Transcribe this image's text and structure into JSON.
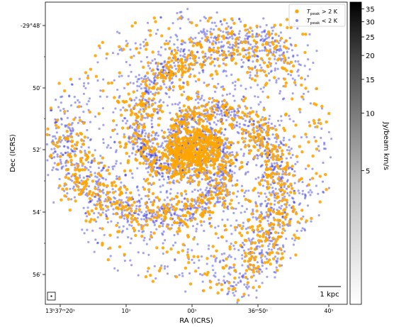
{
  "chart_data": {
    "type": "scatter",
    "xlabel": "RA (ICRS)",
    "ylabel": "Dec (ICRS)",
    "x_ticks": [
      "13ʰ37ᵐ20ˢ",
      "10ˢ",
      "00ˢ",
      "36ᵐ50ˢ",
      "40ˢ"
    ],
    "y_ticks": [
      "-29°48′",
      "50′",
      "52′",
      "54′",
      "56′"
    ],
    "y_tick_values_arcmin": [
      48,
      50,
      52,
      54,
      56
    ],
    "legend": {
      "placement": "top-right",
      "entries": [
        {
          "label": "T_peak > 2 K",
          "color": "#ffa500"
        },
        {
          "label": "T_peak < 2 K",
          "color": "#3b3bdf"
        }
      ]
    },
    "series": [
      {
        "name": "T_peak > 2 K",
        "color": "#ffa500"
      },
      {
        "name": "T_peak < 2 K",
        "color": "#3232e0"
      }
    ],
    "scalebar_label": "1 kpc",
    "colorbar": {
      "label": "Jy/beam km/s",
      "ticks": [
        "35",
        "30",
        "25",
        "20",
        "15",
        "10",
        "5"
      ],
      "tick_values": [
        35,
        30,
        25,
        20,
        15,
        10,
        5
      ],
      "scale": "log-like",
      "cmap": "greys"
    },
    "grid": false
  }
}
